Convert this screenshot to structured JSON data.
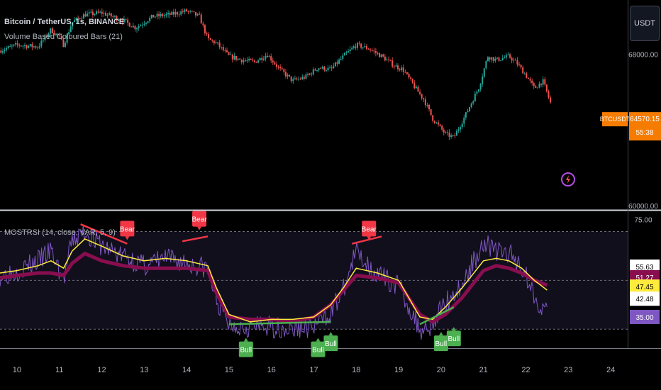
{
  "header": {
    "symbol_title": "Bitcoin / TetherUS, 1s, BINANCE",
    "indicator_1": "Volume Based Coloured Bars (21)",
    "indicator_2": "MOSTRSI (14, close, VAR, 5, 9)",
    "currency_button": "USDT"
  },
  "colors": {
    "background": "#000000",
    "up": "#26a69a",
    "down": "#ef5350",
    "rsi_line": "#7e57c2",
    "signal_line": "#ffeb3b",
    "most_line": "#880e4f",
    "bear_label": "#f23645",
    "bull_label": "#4caf50",
    "price_tag": "#f57c00"
  },
  "chart_data": [
    {
      "type": "candlestick",
      "title": "Bitcoin / TetherUS, 1s, BINANCE",
      "ylim": [
        60000,
        70500
      ],
      "yticks": [
        "68000.00",
        "60000.00"
      ],
      "last_price_label": "BTCUSDT",
      "last_price": "64570.15",
      "countdown": "55:38",
      "close_path": {
        "x": [
          9.6,
          10.0,
          10.5,
          10.8,
          11.0,
          11.1,
          11.3,
          11.6,
          12.0,
          12.5,
          12.8,
          13.2,
          13.6,
          14.0,
          14.3,
          14.5,
          14.7,
          15.0,
          15.3,
          15.6,
          15.9,
          16.2,
          16.5,
          16.8,
          17.1,
          17.4,
          17.7,
          18.0,
          18.3,
          18.6,
          18.9,
          19.1,
          19.4,
          19.6,
          19.8,
          20.1,
          20.3,
          20.6,
          20.9,
          21.1,
          21.3,
          21.6,
          21.8,
          22.0,
          22.2,
          22.4,
          22.6
        ],
        "y": [
          68200,
          68500,
          68400,
          69300,
          68900,
          68500,
          69700,
          70100,
          70200,
          69800,
          69400,
          70000,
          70100,
          70300,
          70000,
          68800,
          68600,
          67900,
          67700,
          67600,
          68000,
          67200,
          66600,
          66800,
          67300,
          67200,
          67900,
          68500,
          68300,
          67900,
          67400,
          67200,
          66200,
          65600,
          64600,
          63800,
          63600,
          64900,
          66300,
          67900,
          67700,
          67900,
          67500,
          66900,
          66200,
          66600,
          65300
        ]
      }
    },
    {
      "type": "line",
      "title": "MOSTRSI (14, close, VAR, 5, 9)",
      "ylim": [
        22.5,
        78
      ],
      "yticks": [
        "75.00"
      ],
      "last_values": [
        "55.63",
        "51.27",
        "47.45",
        "42.48",
        "35.00"
      ],
      "levels": [
        70,
        50,
        30
      ],
      "series": [
        {
          "x": [
            9.6,
            10.0,
            10.5,
            10.8,
            11.1,
            11.3,
            11.6,
            12.0,
            12.5,
            13.0,
            13.5,
            14.0,
            14.5,
            14.7,
            15.0,
            15.5,
            16.0,
            16.5,
            17.0,
            17.4,
            17.7,
            18.0,
            18.5,
            19.0,
            19.5,
            19.8,
            20.1,
            20.5,
            21.0,
            21.3,
            21.6,
            21.9,
            22.2,
            22.5
          ],
          "y": [
            52,
            54,
            58,
            62,
            50,
            66,
            70,
            64,
            60,
            56,
            59,
            57,
            55,
            42,
            32,
            31,
            31,
            30,
            31,
            37,
            46,
            62,
            52,
            48,
            30,
            32,
            41,
            48,
            66,
            62,
            61,
            56,
            44,
            36
          ]
        },
        {
          "x": [
            9.6,
            10.0,
            10.5,
            10.8,
            11.1,
            11.3,
            11.6,
            12.0,
            12.5,
            13.0,
            13.5,
            14.0,
            14.5,
            14.7,
            15.0,
            15.5,
            16.0,
            16.5,
            17.0,
            17.4,
            17.7,
            18.0,
            18.5,
            19.0,
            19.5,
            19.8,
            20.1,
            20.5,
            21.0,
            21.3,
            21.6,
            21.9,
            22.2,
            22.5
          ],
          "y": [
            53,
            54,
            56,
            58,
            55,
            62,
            67,
            64,
            60,
            58,
            59,
            58,
            56,
            47,
            36,
            33,
            34,
            34,
            35,
            40,
            47,
            55,
            53,
            50,
            35,
            34,
            39,
            47,
            58,
            59,
            58,
            55,
            50,
            46
          ]
        },
        {
          "x": [
            9.6,
            10.0,
            10.5,
            10.8,
            11.1,
            11.3,
            11.6,
            12.0,
            12.5,
            13.0,
            13.5,
            14.0,
            14.5,
            14.7,
            15.0,
            15.5,
            16.0,
            16.5,
            17.0,
            17.4,
            17.7,
            18.0,
            18.5,
            19.0,
            19.5,
            19.8,
            20.1,
            20.5,
            21.0,
            21.3,
            21.6,
            21.9,
            22.2,
            22.5
          ],
          "y": [
            51,
            52,
            53,
            53,
            52,
            57,
            61,
            58,
            56,
            55,
            55,
            55,
            54,
            45,
            35,
            34,
            34,
            33,
            35,
            40,
            46,
            52,
            51,
            49,
            36,
            33,
            36,
            43,
            54,
            56,
            55,
            53,
            50,
            48
          ]
        }
      ],
      "annotations": [
        {
          "text": "Bear",
          "x": 12.6,
          "y": 68
        },
        {
          "text": "Bear",
          "x": 14.3,
          "y": 72
        },
        {
          "text": "Bear",
          "x": 18.3,
          "y": 68
        },
        {
          "text": "Bull",
          "x": 15.4,
          "y": 25.5
        },
        {
          "text": "Bull",
          "x": 17.1,
          "y": 25.5
        },
        {
          "text": "Bull",
          "x": 17.4,
          "y": 28
        },
        {
          "text": "Bull",
          "x": 20.0,
          "y": 28
        },
        {
          "text": "Bull",
          "x": 20.3,
          "y": 30
        }
      ],
      "divergence_lines": [
        {
          "kind": "bear",
          "x": [
            11.5,
            12.6
          ],
          "y": [
            73,
            65
          ]
        },
        {
          "kind": "bear",
          "x": [
            13.9,
            14.5
          ],
          "y": [
            66,
            68
          ]
        },
        {
          "kind": "bear",
          "x": [
            17.9,
            18.6
          ],
          "y": [
            65,
            68
          ]
        },
        {
          "kind": "bull",
          "x": [
            15.0,
            17.4
          ],
          "y": [
            32,
            33
          ]
        },
        {
          "kind": "bull",
          "x": [
            19.5,
            20.3
          ],
          "y": [
            32,
            39
          ]
        }
      ]
    }
  ],
  "x_axis": {
    "xlim": [
      9.6,
      24.4
    ],
    "tick_labels": [
      "10",
      "11",
      "12",
      "13",
      "14",
      "15",
      "16",
      "17",
      "18",
      "19",
      "20",
      "21",
      "22",
      "23",
      "24"
    ]
  }
}
